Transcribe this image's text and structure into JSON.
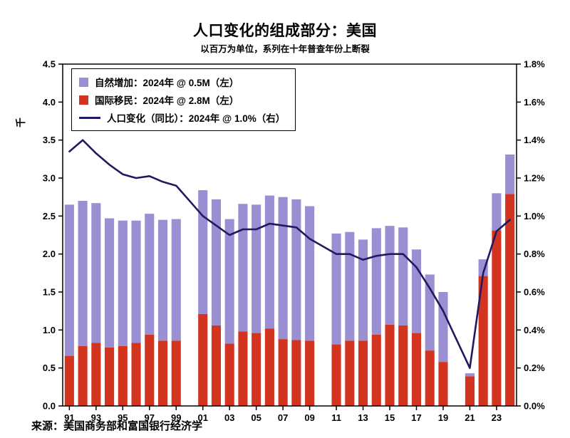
{
  "title": "人口变化的组成部分：美国",
  "subtitle": "以百万为单位，系列在十年普查年份上断裂",
  "source": "来源：美国商务部和富国银行经济学",
  "legend": [
    {
      "label": "自然增加：2024年 @ 0.5M（左）",
      "swatch": "square",
      "color": "#9A8FD2"
    },
    {
      "label": "国际移民：2024年 @ 2.8M（左）",
      "swatch": "square",
      "color": "#D23420"
    },
    {
      "label": "人口变化（同比）：2024年 @ 1.0%（右）",
      "swatch": "line",
      "color": "#1E1B62"
    }
  ],
  "chart_data": {
    "type": "bar",
    "stacked": true,
    "grid": false,
    "legend_position": "top-left",
    "note": "series break at decennial census years 2000, 2010, 2020",
    "break_years": [
      2000,
      2010,
      2020
    ],
    "x": [
      1991,
      1992,
      1993,
      1994,
      1995,
      1996,
      1997,
      1998,
      1999,
      2000,
      2001,
      2002,
      2003,
      2004,
      2005,
      2006,
      2007,
      2008,
      2009,
      2010,
      2011,
      2012,
      2013,
      2014,
      2015,
      2016,
      2017,
      2018,
      2019,
      2020,
      2021,
      2022,
      2023,
      2024
    ],
    "x_tick_years": [
      1991,
      1993,
      1995,
      1997,
      1999,
      2001,
      2003,
      2005,
      2007,
      2009,
      2011,
      2013,
      2015,
      2017,
      2019,
      2021,
      2023
    ],
    "x_tick_labels": [
      "91",
      "93",
      "95",
      "97",
      "99",
      "01",
      "03",
      "05",
      "07",
      "09",
      "11",
      "13",
      "15",
      "17",
      "19",
      "21",
      "23"
    ],
    "series": [
      {
        "name": "国际移民",
        "type": "bar",
        "axis": "left",
        "color": "#D23420",
        "values": [
          0.66,
          0.79,
          0.83,
          0.77,
          0.79,
          0.83,
          0.94,
          0.86,
          0.86,
          null,
          1.21,
          1.06,
          0.82,
          0.98,
          0.96,
          1.02,
          0.88,
          0.87,
          0.86,
          null,
          0.81,
          0.86,
          0.86,
          0.94,
          1.07,
          1.06,
          0.96,
          0.73,
          0.58,
          null,
          0.39,
          1.71,
          2.31,
          2.79
        ]
      },
      {
        "name": "自然增加",
        "type": "bar",
        "axis": "left",
        "color": "#9A8FD2",
        "values": [
          1.99,
          1.91,
          1.84,
          1.7,
          1.65,
          1.61,
          1.59,
          1.59,
          1.6,
          null,
          1.63,
          1.66,
          1.64,
          1.68,
          1.69,
          1.75,
          1.87,
          1.85,
          1.77,
          null,
          1.46,
          1.43,
          1.33,
          1.4,
          1.3,
          1.29,
          1.1,
          1.0,
          0.92,
          null,
          0.04,
          0.22,
          0.49,
          0.52
        ]
      },
      {
        "name": "人口变化（同比）",
        "type": "line",
        "axis": "right",
        "color": "#1E1B62",
        "values": [
          1.34,
          1.4,
          1.33,
          1.27,
          1.22,
          1.2,
          1.21,
          1.18,
          1.16,
          null,
          1.0,
          0.95,
          0.9,
          0.93,
          0.93,
          0.96,
          0.95,
          0.94,
          0.88,
          null,
          0.8,
          0.8,
          0.77,
          0.79,
          0.8,
          0.8,
          0.73,
          0.62,
          0.5,
          null,
          0.2,
          0.7,
          0.92,
          0.98
        ]
      }
    ],
    "left_axis": {
      "label": "千",
      "min": 0,
      "max": 4.5,
      "ticks": [
        "4.5",
        "4.0",
        "3.5",
        "3.0",
        "2.5",
        "2.0",
        "1.5",
        "1.0",
        "0.5",
        "0.0"
      ]
    },
    "right_axis": {
      "min": 0,
      "max": 1.8,
      "ticks": [
        "1.8%",
        "1.6%",
        "1.4%",
        "1.2%",
        "1.0%",
        "0.8%",
        "0.6%",
        "0.4%",
        "0.2%",
        "0.0%"
      ]
    }
  }
}
